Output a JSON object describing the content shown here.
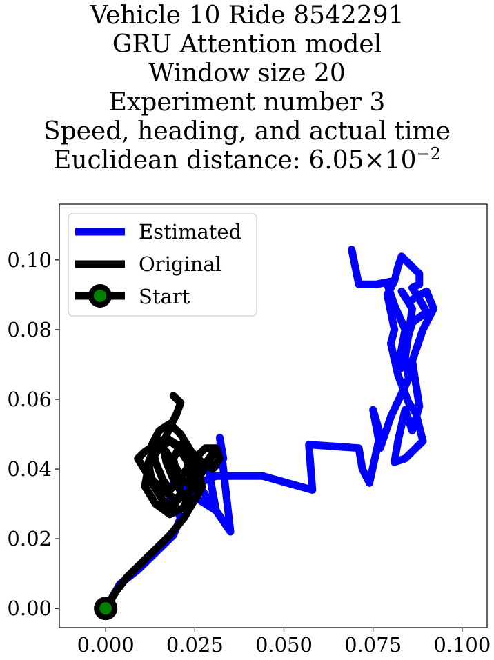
{
  "title_lines": [
    "Vehicle 10 Ride 8542291",
    "GRU Attention model",
    "Window size 20",
    "Experiment number 3",
    "Speed, heading, and actual time"
  ],
  "distance": {
    "prefix": "Euclidean distance: ",
    "mantissa": "6.05",
    "times": "×",
    "base": "10",
    "exponent": "−2"
  },
  "chart_data": {
    "type": "line",
    "xlim": [
      -0.013,
      0.107
    ],
    "ylim": [
      -0.0055,
      0.116
    ],
    "xticks": [
      0.0,
      0.025,
      0.05,
      0.075,
      0.1
    ],
    "xtick_labels": [
      "0.000",
      "0.025",
      "0.050",
      "0.075",
      "0.100"
    ],
    "yticks": [
      0.0,
      0.02,
      0.04,
      0.06,
      0.08,
      0.1
    ],
    "ytick_labels": [
      "0.00",
      "0.02",
      "0.04",
      "0.06",
      "0.08",
      "0.10"
    ],
    "grid": false,
    "legend_position": "top-left",
    "legend": [
      "Estimated",
      "Original",
      "Start"
    ],
    "series": [
      {
        "name": "Estimated",
        "color": "#0000ff",
        "x": [
          0.0,
          0.004,
          0.009,
          0.014,
          0.019,
          0.021,
          0.017,
          0.021,
          0.025,
          0.031,
          0.029,
          0.033,
          0.032,
          0.035,
          0.027,
          0.026,
          0.031,
          0.044,
          0.058,
          0.057,
          0.071,
          0.072,
          0.074,
          0.077,
          0.075,
          0.077,
          0.08,
          0.085,
          0.084,
          0.086,
          0.083,
          0.085,
          0.09,
          0.092,
          0.089,
          0.086,
          0.088,
          0.086,
          0.084,
          0.082,
          0.081,
          0.084,
          0.089,
          0.087,
          0.085,
          0.082,
          0.08,
          0.081,
          0.08,
          0.079,
          0.081,
          0.082,
          0.083,
          0.088,
          0.088,
          0.086,
          0.089,
          0.09,
          0.086,
          0.084,
          0.083,
          0.081,
          0.082,
          0.084,
          0.081,
          0.079,
          0.081,
          0.076,
          0.071,
          0.069
        ],
        "y": [
          0.0,
          0.007,
          0.011,
          0.016,
          0.021,
          0.026,
          0.034,
          0.037,
          0.032,
          0.028,
          0.039,
          0.043,
          0.049,
          0.022,
          0.034,
          0.036,
          0.038,
          0.038,
          0.034,
          0.047,
          0.046,
          0.04,
          0.036,
          0.05,
          0.057,
          0.046,
          0.055,
          0.066,
          0.072,
          0.086,
          0.091,
          0.088,
          0.091,
          0.086,
          0.08,
          0.071,
          0.058,
          0.051,
          0.057,
          0.048,
          0.042,
          0.043,
          0.048,
          0.056,
          0.059,
          0.067,
          0.076,
          0.08,
          0.085,
          0.09,
          0.094,
          0.098,
          0.101,
          0.096,
          0.093,
          0.092,
          0.087,
          0.085,
          0.082,
          0.075,
          0.069,
          0.072,
          0.069,
          0.08,
          0.087,
          0.093,
          0.094,
          0.093,
          0.093,
          0.103
        ]
      },
      {
        "name": "Original",
        "color": "#000000",
        "x": [
          0.0,
          0.003,
          0.006,
          0.01,
          0.014,
          0.018,
          0.022,
          0.026,
          0.025,
          0.022,
          0.018,
          0.015,
          0.012,
          0.011,
          0.014,
          0.018,
          0.022,
          0.024,
          0.023,
          0.02,
          0.017,
          0.014,
          0.012,
          0.013,
          0.016,
          0.019,
          0.021,
          0.02,
          0.017,
          0.014,
          0.011,
          0.009,
          0.012,
          0.016,
          0.02,
          0.024,
          0.027,
          0.03,
          0.031,
          0.029,
          0.026,
          0.023,
          0.02,
          0.019,
          0.021,
          0.024,
          0.027,
          0.03,
          0.032,
          0.031,
          0.028,
          0.025,
          0.022,
          0.02,
          0.018,
          0.016,
          0.014,
          0.013,
          0.015,
          0.018,
          0.021,
          0.024,
          0.026,
          0.027,
          0.025,
          0.022,
          0.019,
          0.017,
          0.016,
          0.018,
          0.02,
          0.021,
          0.019
        ],
        "y": [
          0.0,
          0.005,
          0.009,
          0.013,
          0.017,
          0.021,
          0.026,
          0.033,
          0.04,
          0.045,
          0.048,
          0.046,
          0.041,
          0.035,
          0.03,
          0.027,
          0.029,
          0.035,
          0.042,
          0.047,
          0.049,
          0.047,
          0.042,
          0.036,
          0.031,
          0.029,
          0.033,
          0.04,
          0.045,
          0.047,
          0.045,
          0.043,
          0.038,
          0.034,
          0.031,
          0.034,
          0.039,
          0.044,
          0.046,
          0.043,
          0.039,
          0.036,
          0.038,
          0.043,
          0.047,
          0.045,
          0.042,
          0.04,
          0.043,
          0.046,
          0.046,
          0.043,
          0.039,
          0.036,
          0.034,
          0.037,
          0.042,
          0.047,
          0.051,
          0.053,
          0.05,
          0.045,
          0.04,
          0.035,
          0.031,
          0.032,
          0.037,
          0.042,
          0.047,
          0.052,
          0.056,
          0.059,
          0.061
        ]
      }
    ],
    "start": {
      "x": 0.0,
      "y": 0.0,
      "marker_color": "#008000",
      "edge_color": "#000000"
    }
  }
}
